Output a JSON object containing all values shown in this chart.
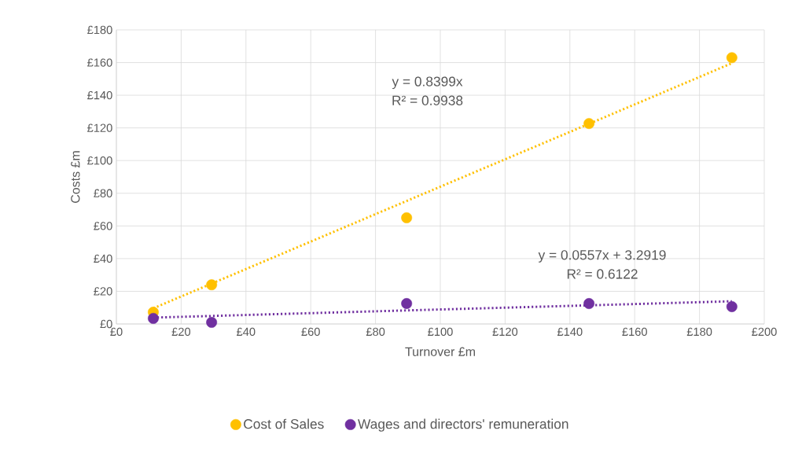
{
  "chart_data": {
    "type": "scatter",
    "xlabel": "Turnover £m",
    "ylabel": "Costs £m",
    "xlim": [
      0,
      200
    ],
    "ylim": [
      0,
      180
    ],
    "xticks": [
      {
        "value": 0,
        "label": "£0"
      },
      {
        "value": 20,
        "label": "£20"
      },
      {
        "value": 40,
        "label": "£40"
      },
      {
        "value": 60,
        "label": "£60"
      },
      {
        "value": 80,
        "label": "£80"
      },
      {
        "value": 100,
        "label": "£100"
      },
      {
        "value": 120,
        "label": "£120"
      },
      {
        "value": 140,
        "label": "£140"
      },
      {
        "value": 160,
        "label": "£160"
      },
      {
        "value": 180,
        "label": "£180"
      },
      {
        "value": 200,
        "label": "£200"
      }
    ],
    "yticks": [
      {
        "value": 0,
        "label": "£0"
      },
      {
        "value": 20,
        "label": "£20"
      },
      {
        "value": 40,
        "label": "£40"
      },
      {
        "value": 60,
        "label": "£60"
      },
      {
        "value": 80,
        "label": "£80"
      },
      {
        "value": 100,
        "label": "£100"
      },
      {
        "value": 120,
        "label": "£120"
      },
      {
        "value": 140,
        "label": "£140"
      },
      {
        "value": 160,
        "label": "£160"
      },
      {
        "value": 180,
        "label": "£180"
      }
    ],
    "grid": true,
    "legend": "bottom",
    "marker": "circle",
    "x": [
      11.4,
      29.4,
      89.6,
      145.9,
      190
    ],
    "series": [
      {
        "name": "Cost of Sales",
        "color": "#ffc000",
        "values": [
          7.2,
          24,
          65,
          122.7,
          163
        ]
      },
      {
        "name": "Wages and directors' remuneration",
        "color": "#7030a0",
        "values": [
          3.4,
          1,
          12.5,
          12.5,
          10.6
        ]
      },
      {
        "type": "line",
        "color": "#ffc000",
        "values": [
          9.6,
          24.7,
          75.3,
          122.5,
          159.6
        ],
        "line_style": "dotted",
        "marker": "none"
      },
      {
        "type": "line",
        "color": "#7030a0",
        "values": [
          3.9,
          4.9,
          8.3,
          11.4,
          13.9
        ],
        "line_style": "dotted",
        "marker": "none"
      }
    ],
    "annotations": [
      "y = 0.8399x",
      "R² = 0.9938",
      "y = 0.0557x + 3.2919",
      "R² = 0.6122"
    ]
  }
}
